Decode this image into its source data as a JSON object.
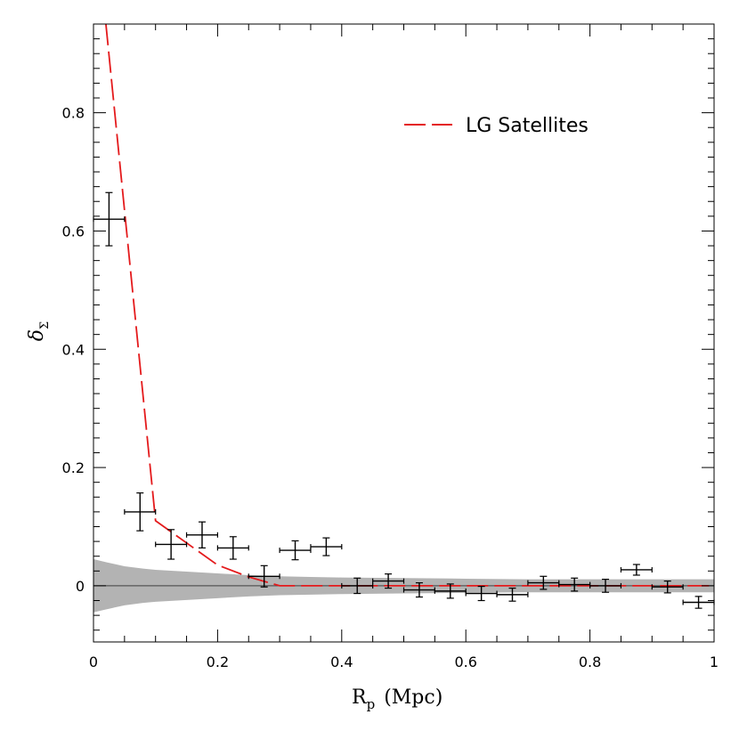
{
  "chart_data": {
    "type": "scatter",
    "title": "",
    "xlabel": "R",
    "xlabel_sub": "p",
    "xlabel_unit": "(Mpc)",
    "ylabel": "δ",
    "ylabel_sub": "Σ",
    "xlim": [
      0,
      1
    ],
    "ylim": [
      -0.095,
      0.95
    ],
    "x_ticks": [
      0,
      0.2,
      0.4,
      0.6,
      0.8,
      1
    ],
    "x_tick_labels": [
      "0",
      "0.2",
      "0.4",
      "0.6",
      "0.8",
      "1"
    ],
    "y_ticks": [
      0,
      0.2,
      0.4,
      0.6,
      0.8
    ],
    "y_tick_labels": [
      "0",
      "0.2",
      "0.4",
      "0.6",
      "0.8"
    ],
    "grid": false,
    "legend_position": "top-right",
    "series": [
      {
        "name": "LG Satellites",
        "kind": "line",
        "style": "dashed",
        "color": "#e41a1c",
        "x": [
          0.02,
          0.1,
          0.2,
          0.25,
          0.3,
          0.5,
          1.0
        ],
        "y": [
          0.95,
          0.11,
          0.035,
          0.015,
          0.0,
          0.0,
          0.0
        ]
      },
      {
        "kind": "errorbar",
        "color": "#000000",
        "x": [
          0.025,
          0.075,
          0.125,
          0.175,
          0.225,
          0.275,
          0.325,
          0.375,
          0.425,
          0.475,
          0.525,
          0.575,
          0.625,
          0.675,
          0.725,
          0.775,
          0.825,
          0.875,
          0.925,
          0.975
        ],
        "x_err": [
          0.025,
          0.025,
          0.025,
          0.025,
          0.025,
          0.025,
          0.025,
          0.025,
          0.025,
          0.025,
          0.025,
          0.025,
          0.025,
          0.025,
          0.025,
          0.025,
          0.025,
          0.025,
          0.025,
          0.025
        ],
        "y": [
          0.62,
          0.125,
          0.07,
          0.086,
          0.064,
          0.016,
          0.06,
          0.066,
          0.0,
          0.008,
          -0.007,
          -0.009,
          -0.013,
          -0.015,
          0.005,
          0.002,
          0.0,
          0.027,
          -0.002,
          -0.028
        ],
        "y_err": [
          0.045,
          0.032,
          0.025,
          0.022,
          0.019,
          0.018,
          0.016,
          0.015,
          0.013,
          0.012,
          0.012,
          0.012,
          0.012,
          0.011,
          0.011,
          0.011,
          0.011,
          0.009,
          0.01,
          0.01
        ]
      },
      {
        "kind": "band",
        "color": "#b3b3b3",
        "x": [
          0.0,
          0.02,
          0.05,
          0.08,
          0.1,
          0.15,
          0.2,
          0.25,
          0.3,
          0.35,
          0.4,
          0.5,
          0.6,
          0.7,
          0.8,
          0.9,
          1.0
        ],
        "upper": [
          0.045,
          0.04,
          0.033,
          0.029,
          0.027,
          0.024,
          0.021,
          0.018,
          0.016,
          0.015,
          0.014,
          0.013,
          0.012,
          0.011,
          0.011,
          0.011,
          0.011
        ],
        "lower": [
          -0.045,
          -0.04,
          -0.033,
          -0.029,
          -0.027,
          -0.024,
          -0.021,
          -0.018,
          -0.016,
          -0.015,
          -0.014,
          -0.013,
          -0.012,
          -0.011,
          -0.011,
          -0.011,
          -0.011
        ]
      },
      {
        "kind": "hline",
        "color": "#555555",
        "y": 0
      }
    ]
  }
}
